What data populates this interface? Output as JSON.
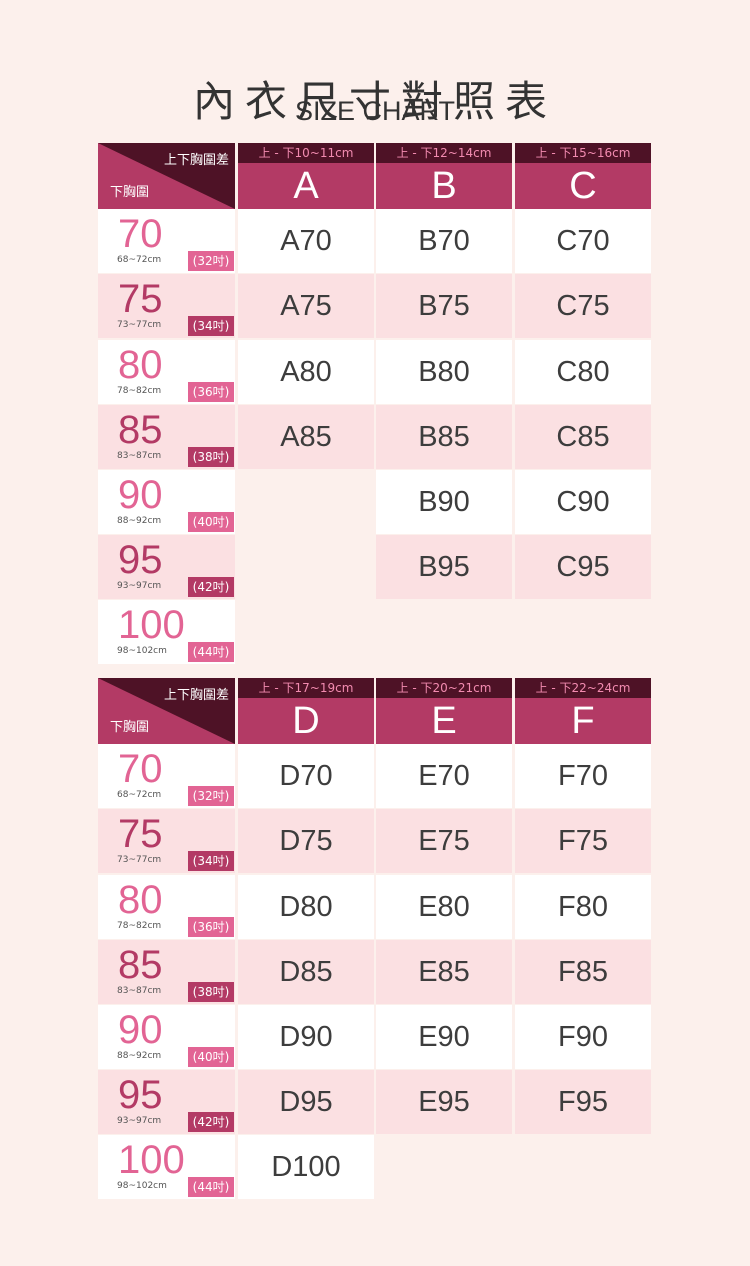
{
  "title": "內衣尺寸對照表",
  "subtitle": "SIZE CHART",
  "colors": {
    "bg": "#fcf0ec",
    "magenta": "#b33a65",
    "pink": "#e26494",
    "dark": "#4e1226",
    "alt_row": "#fbe0e2"
  },
  "tables": [
    {
      "corner_top": "上下胸圍差",
      "corner_bottom": "下胸圍",
      "columns": [
        {
          "range": "上 - 下10~11cm",
          "letter": "A"
        },
        {
          "range": "上 - 下12~14cm",
          "letter": "B"
        },
        {
          "range": "上 - 下15~16cm",
          "letter": "C"
        }
      ],
      "rows": [
        {
          "band": "70",
          "cm": "68~72cm",
          "inch": "(32吋)",
          "cells": [
            "A70",
            "B70",
            "C70"
          ]
        },
        {
          "band": "75",
          "cm": "73~77cm",
          "inch": "(34吋)",
          "cells": [
            "A75",
            "B75",
            "C75"
          ]
        },
        {
          "band": "80",
          "cm": "78~82cm",
          "inch": "(36吋)",
          "cells": [
            "A80",
            "B80",
            "C80"
          ]
        },
        {
          "band": "85",
          "cm": "83~87cm",
          "inch": "(38吋)",
          "cells": [
            "A85",
            "B85",
            "C85"
          ]
        },
        {
          "band": "90",
          "cm": "88~92cm",
          "inch": "(40吋)",
          "cells": [
            "",
            "B90",
            "C90"
          ]
        },
        {
          "band": "95",
          "cm": "93~97cm",
          "inch": "(42吋)",
          "cells": [
            "",
            "B95",
            "C95"
          ]
        },
        {
          "band": "100",
          "cm": "98~102cm",
          "inch": "(44吋)",
          "cells": [
            "",
            "",
            ""
          ]
        }
      ]
    },
    {
      "corner_top": "上下胸圍差",
      "corner_bottom": "下胸圍",
      "columns": [
        {
          "range": "上 - 下17~19cm",
          "letter": "D"
        },
        {
          "range": "上 - 下20~21cm",
          "letter": "E"
        },
        {
          "range": "上 - 下22~24cm",
          "letter": "F"
        }
      ],
      "rows": [
        {
          "band": "70",
          "cm": "68~72cm",
          "inch": "(32吋)",
          "cells": [
            "D70",
            "E70",
            "F70"
          ]
        },
        {
          "band": "75",
          "cm": "73~77cm",
          "inch": "(34吋)",
          "cells": [
            "D75",
            "E75",
            "F75"
          ]
        },
        {
          "band": "80",
          "cm": "78~82cm",
          "inch": "(36吋)",
          "cells": [
            "D80",
            "E80",
            "F80"
          ]
        },
        {
          "band": "85",
          "cm": "83~87cm",
          "inch": "(38吋)",
          "cells": [
            "D85",
            "E85",
            "F85"
          ]
        },
        {
          "band": "90",
          "cm": "88~92cm",
          "inch": "(40吋)",
          "cells": [
            "D90",
            "E90",
            "F90"
          ]
        },
        {
          "band": "95",
          "cm": "93~97cm",
          "inch": "(42吋)",
          "cells": [
            "D95",
            "E95",
            "F95"
          ]
        },
        {
          "band": "100",
          "cm": "98~102cm",
          "inch": "(44吋)",
          "cells": [
            "D100",
            "",
            ""
          ]
        }
      ]
    }
  ]
}
